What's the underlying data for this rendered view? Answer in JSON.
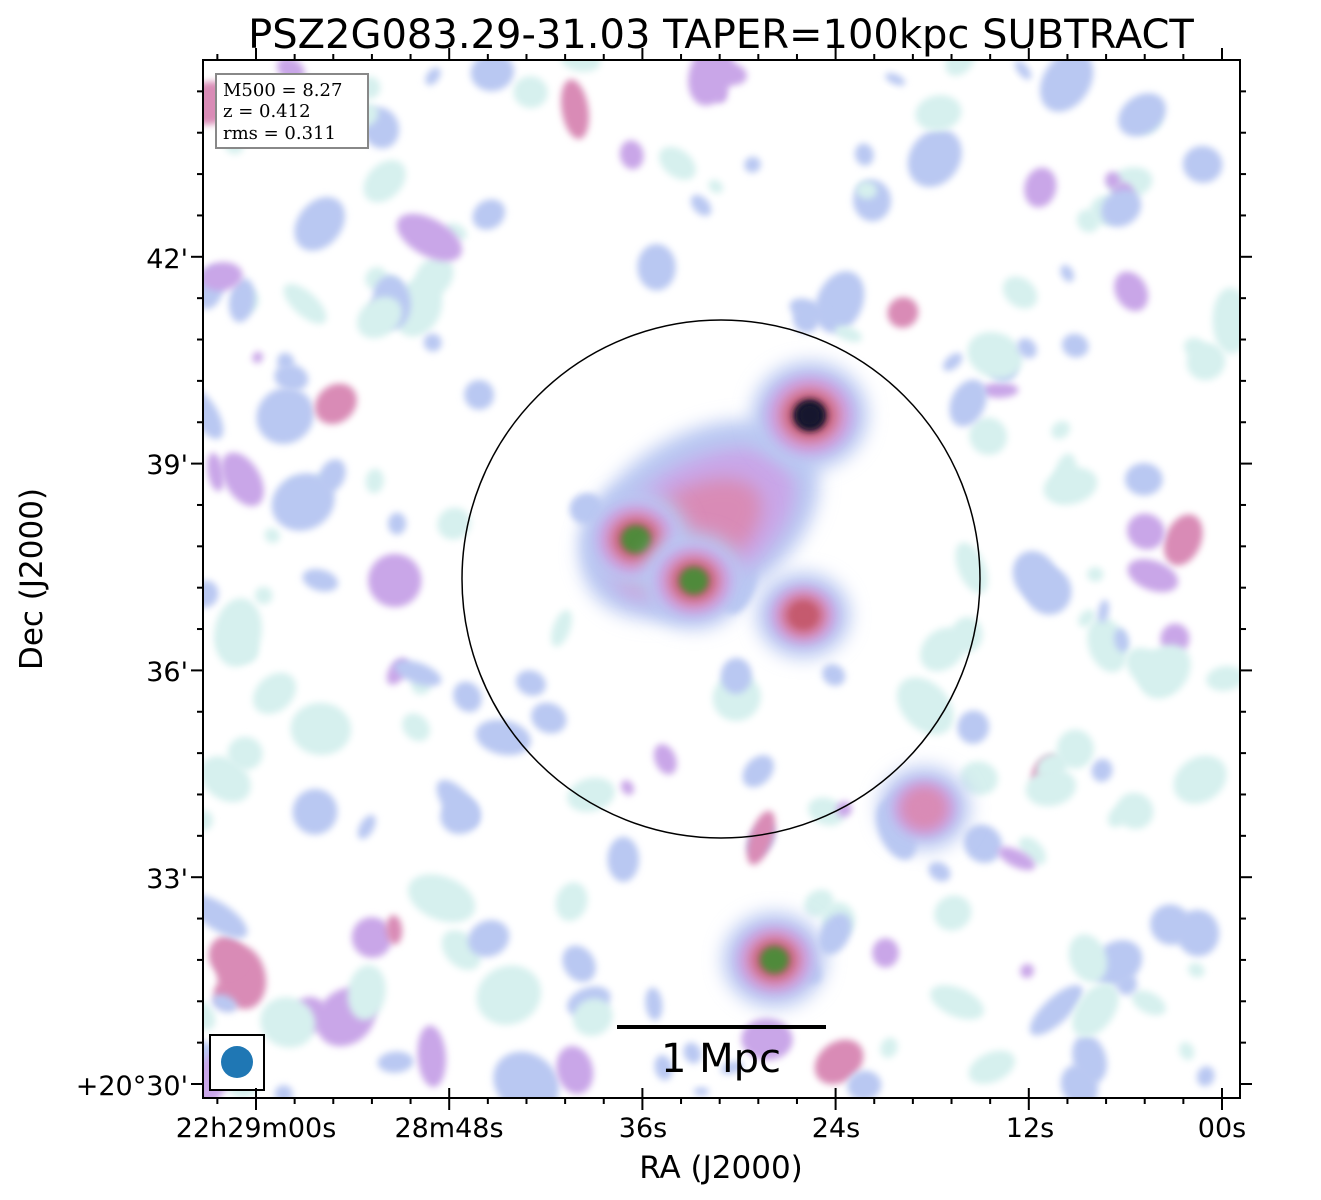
{
  "chart_data": {
    "type": "heatmap",
    "title": "PSZ2G083.29-31.03 TAPER=100kpc SUBTRACT",
    "xlabel": "RA (J2000)",
    "ylabel": "Dec (J2000)",
    "x_ticks": [
      "22h29m00s",
      "28m48s",
      "36s",
      "24s",
      "12s",
      "00s"
    ],
    "y_ticks": [
      "+20°30'",
      "33'",
      "36'",
      "39'",
      "42'"
    ],
    "info": {
      "m500": "M500 = 8.27",
      "z": "z = 0.412",
      "rms": "rms = 0.311"
    },
    "scale_bar_label": "1 Mpc",
    "colormap": [
      "#ffffff",
      "#d6f0ee",
      "#b9c8f2",
      "#c9a6e8",
      "#d98bb6",
      "#c55a6e",
      "#4f8a3a",
      "#1f5a34",
      "#15162e"
    ],
    "peaks": [
      {
        "ra": "22h28m25.6s",
        "dec": "+20°39.7'",
        "intensity": 1.0
      },
      {
        "ra": "22h28m36.4s",
        "dec": "+20°37.9'",
        "intensity": 0.78
      },
      {
        "ra": "22h28m32.8s",
        "dec": "+20°37.3'",
        "intensity": 0.74
      },
      {
        "ra": "22h28m27.8s",
        "dec": "+20°31.8'",
        "intensity": 0.72
      },
      {
        "ra": "22h28m18.5s",
        "dec": "+20°34.0'",
        "intensity": 0.45
      },
      {
        "ra": "22h28m26.0s",
        "dec": "+20°36.8'",
        "intensity": 0.5
      }
    ]
  }
}
